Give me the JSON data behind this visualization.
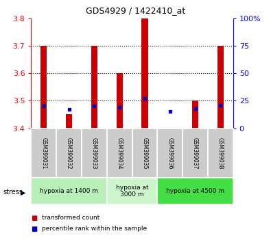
{
  "title": "GDS4929 / 1422410_at",
  "samples": [
    "GSM399031",
    "GSM399032",
    "GSM399033",
    "GSM399034",
    "GSM399035",
    "GSM399036",
    "GSM399037",
    "GSM399038"
  ],
  "red_values": [
    3.7,
    3.45,
    3.7,
    3.6,
    3.8,
    3.4,
    3.5,
    3.7
  ],
  "blue_percentiles": [
    20,
    17,
    20,
    19,
    27,
    15,
    18,
    21
  ],
  "y_min": 3.4,
  "y_max": 3.8,
  "y_ticks": [
    3.4,
    3.5,
    3.6,
    3.7,
    3.8
  ],
  "right_y_ticks": [
    0,
    25,
    50,
    75,
    100
  ],
  "groups": [
    {
      "label": "hypoxia at 1400 m",
      "start": 0,
      "end": 3,
      "color": "#b8f0b8"
    },
    {
      "label": "hypoxia at\n3000 m",
      "start": 3,
      "end": 5,
      "color": "#ccf5cc"
    },
    {
      "label": "hypoxia at 4500 m",
      "start": 5,
      "end": 8,
      "color": "#44dd44"
    }
  ],
  "bar_color": "#cc0000",
  "dot_color": "#0000cc",
  "label_bg_color": "#cccccc",
  "stress_label": "stress",
  "legend_red": "transformed count",
  "legend_blue": "percentile rank within the sample",
  "bar_width": 0.25
}
